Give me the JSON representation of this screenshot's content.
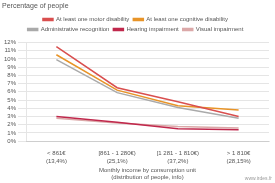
{
  "chart_data": {
    "type": "line",
    "title": "Percentage of people",
    "xlabel": "Monthly income by consumption unit\n(distribution of people, info)",
    "categories": [
      "< 861€\n(13,4%)",
      "[861 - 1 280€)\n(25,1%)",
      "[1 281 - 1 810€)\n(37,2%)",
      "> 1 810€\n(28,15%)"
    ],
    "series": [
      {
        "name": "At least one motor disability",
        "color": "#d94f4f",
        "values": [
          11.5,
          6.5,
          4.8,
          3.0
        ]
      },
      {
        "name": "At least one cognitive disability",
        "color": "#e89428",
        "values": [
          10.5,
          6.2,
          4.3,
          3.8
        ]
      },
      {
        "name": "Administrative recognition",
        "color": "#aaaaaa",
        "values": [
          9.9,
          5.9,
          4.1,
          2.8
        ]
      },
      {
        "name": "Hearing impairment",
        "color": "#c0284c",
        "values": [
          3.0,
          2.3,
          1.5,
          1.4
        ]
      },
      {
        "name": "Visual impairment",
        "color": "#dba8a8",
        "values": [
          2.8,
          2.2,
          1.8,
          1.6
        ]
      }
    ],
    "ylim": [
      0,
      12
    ],
    "yticks": [
      {
        "value": 0,
        "label": "0%"
      },
      {
        "value": 1,
        "label": "1%"
      },
      {
        "value": 2,
        "label": "2%"
      },
      {
        "value": 3,
        "label": "3%"
      },
      {
        "value": 4,
        "label": "4%"
      },
      {
        "value": 5,
        "label": "5%"
      },
      {
        "value": 6,
        "label": "6%"
      },
      {
        "value": 7,
        "label": "7%"
      },
      {
        "value": 8,
        "label": "8%"
      },
      {
        "value": 9,
        "label": "9%"
      },
      {
        "value": 10,
        "label": "10%"
      },
      {
        "value": 11,
        "label": "11%"
      },
      {
        "value": 12,
        "label": "12%"
      }
    ],
    "grid": true,
    "legend": "top",
    "annotations": [
      "www.irdes.fr"
    ]
  }
}
